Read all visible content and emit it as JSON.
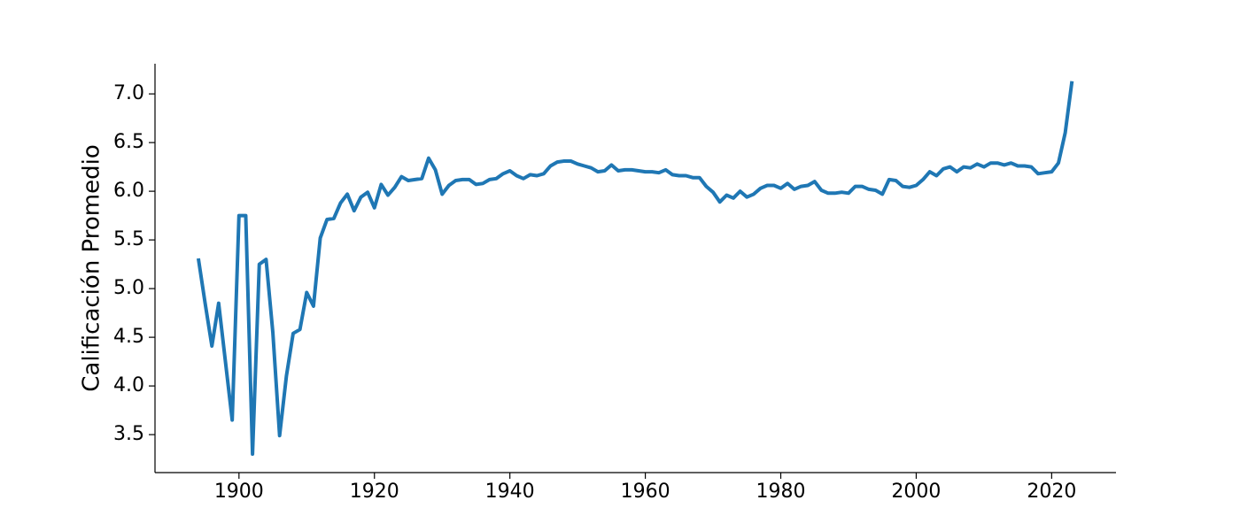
{
  "chart_data": {
    "type": "line",
    "y_label": "Calificación Promedio",
    "x": [
      1894,
      1895,
      1896,
      1897,
      1898,
      1899,
      1900,
      1901,
      1902,
      1903,
      1904,
      1905,
      1906,
      1907,
      1908,
      1909,
      1910,
      1911,
      1912,
      1913,
      1914,
      1915,
      1916,
      1917,
      1918,
      1919,
      1920,
      1921,
      1922,
      1923,
      1924,
      1925,
      1926,
      1927,
      1928,
      1929,
      1930,
      1931,
      1932,
      1933,
      1934,
      1935,
      1936,
      1937,
      1938,
      1939,
      1940,
      1941,
      1942,
      1943,
      1944,
      1945,
      1946,
      1947,
      1948,
      1949,
      1950,
      1951,
      1952,
      1953,
      1954,
      1955,
      1956,
      1957,
      1958,
      1959,
      1960,
      1961,
      1962,
      1963,
      1964,
      1965,
      1966,
      1967,
      1968,
      1969,
      1970,
      1971,
      1972,
      1973,
      1974,
      1975,
      1976,
      1977,
      1978,
      1979,
      1980,
      1981,
      1982,
      1983,
      1984,
      1985,
      1986,
      1987,
      1988,
      1989,
      1990,
      1991,
      1992,
      1993,
      1994,
      1995,
      1996,
      1997,
      1998,
      1999,
      2000,
      2001,
      2002,
      2003,
      2004,
      2005,
      2006,
      2007,
      2008,
      2009,
      2010,
      2011,
      2012,
      2013,
      2014,
      2015,
      2016,
      2017,
      2018,
      2019,
      2020,
      2021,
      2022,
      2023
    ],
    "series": [
      {
        "color": "#1f77b4",
        "values": [
          5.31,
          4.85,
          4.41,
          4.85,
          4.25,
          3.65,
          5.75,
          5.75,
          3.3,
          5.25,
          5.3,
          4.55,
          3.49,
          4.1,
          4.54,
          4.58,
          4.96,
          4.82,
          5.52,
          5.71,
          5.72,
          5.88,
          5.97,
          5.8,
          5.94,
          5.99,
          5.83,
          6.07,
          5.96,
          6.04,
          6.15,
          6.11,
          6.12,
          6.13,
          6.34,
          6.22,
          5.97,
          6.06,
          6.11,
          6.12,
          6.12,
          6.07,
          6.08,
          6.12,
          6.13,
          6.18,
          6.21,
          6.16,
          6.13,
          6.17,
          6.16,
          6.18,
          6.26,
          6.3,
          6.31,
          6.31,
          6.28,
          6.26,
          6.24,
          6.2,
          6.21,
          6.27,
          6.21,
          6.22,
          6.22,
          6.21,
          6.2,
          6.2,
          6.19,
          6.22,
          6.17,
          6.16,
          6.16,
          6.14,
          6.14,
          6.05,
          5.99,
          5.89,
          5.96,
          5.93,
          6.0,
          5.94,
          5.97,
          6.03,
          6.06,
          6.06,
          6.03,
          6.08,
          6.02,
          6.05,
          6.06,
          6.1,
          6.01,
          5.98,
          5.98,
          5.99,
          5.98,
          6.05,
          6.05,
          6.02,
          6.01,
          5.97,
          6.12,
          6.11,
          6.05,
          6.04,
          6.06,
          6.12,
          6.2,
          6.16,
          6.23,
          6.25,
          6.2,
          6.25,
          6.24,
          6.28,
          6.25,
          6.29,
          6.29,
          6.27,
          6.29,
          6.26,
          6.26,
          6.25,
          6.18,
          6.19,
          6.2,
          6.29,
          6.6,
          7.13
        ]
      }
    ],
    "xlim": [
      1887.6,
      2029.5
    ],
    "ylim": [
      3.11,
      7.31
    ],
    "xticks": [
      1900,
      1920,
      1940,
      1960,
      1980,
      2000,
      2020
    ],
    "yticks": [
      3.5,
      {
        "value": 4.0,
        "label": "4.0"
      },
      4.5,
      {
        "value": 5.0,
        "label": "5.0"
      },
      5.5,
      {
        "value": 6.0,
        "label": "6.0"
      },
      6.5,
      {
        "value": 7.0,
        "label": "7.0"
      }
    ]
  }
}
